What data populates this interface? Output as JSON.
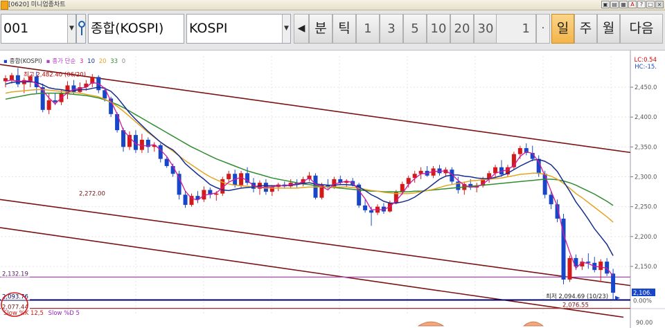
{
  "window": {
    "title": "[0620] 미니업종차트",
    "buttons": [
      "▣",
      "▤",
      "▦",
      "A",
      "?",
      "□",
      "×"
    ]
  },
  "toolbar": {
    "code": "001",
    "name": "종합(KOSPI)",
    "index_select": "KOSPI",
    "back_arrow": "◀",
    "buttons": [
      {
        "label": "분",
        "active": false,
        "num": false
      },
      {
        "label": "틱",
        "active": false,
        "num": false
      },
      {
        "label": "1",
        "active": false,
        "num": true
      },
      {
        "label": "3",
        "active": false,
        "num": true
      },
      {
        "label": "5",
        "active": false,
        "num": true
      },
      {
        "label": "10",
        "active": false,
        "num": true
      },
      {
        "label": "20",
        "active": false,
        "num": true
      },
      {
        "label": "30",
        "active": false,
        "num": true
      }
    ],
    "qty": "1",
    "stepper": "·",
    "period_buttons": [
      {
        "label": "일",
        "active": true
      },
      {
        "label": "주",
        "active": false
      },
      {
        "label": "월",
        "active": false
      },
      {
        "label": "다음",
        "active": false
      }
    ]
  },
  "chart": {
    "legend": {
      "series_name": "종합(KOSPI)",
      "price_type": "종가 단순",
      "ma_labels": [
        "3",
        "10",
        "20",
        "33",
        "0"
      ],
      "ma_colors": [
        "#d0189c",
        "#162d8f",
        "#e3a521",
        "#2f8d2f",
        "#888888"
      ]
    },
    "high_label": "최고 2,482.40 (06/20)",
    "low_label": "최저 2,094.69 (10/23)",
    "lc_label": "LC:0.54",
    "hc_label": "HC:-15.",
    "line_2272": "2,272.00",
    "line_2132": "2,132.19",
    "line_2093": "2,093.76",
    "line_2077": "2,077.44",
    "line_2076": "2,076.55",
    "current_price": "2,106.",
    "pct_label": "0.00%",
    "slow_k": "Slow %K 12,5",
    "slow_d": "Slow %D 5",
    "axis_bottom": "90.00",
    "y_ticks": [
      "2,450.0",
      "2,400.0",
      "2,350.0",
      "2,300.0",
      "2,250.0",
      "2,200.0",
      "2,150.0"
    ],
    "colors": {
      "up": "#d11a1a",
      "down": "#1846c9",
      "trend": "#7a1313",
      "hline": "#b040c0",
      "navy": "#00006a"
    }
  },
  "chart_data": {
    "type": "candlestick",
    "ylim": [
      2060,
      2500
    ],
    "y_ticks": [
      2450,
      2400,
      2350,
      2300,
      2250,
      2200,
      2150
    ],
    "candles": [
      {
        "o": 2460,
        "h": 2470,
        "l": 2450,
        "c": 2465
      },
      {
        "o": 2462,
        "h": 2474,
        "l": 2456,
        "c": 2470
      },
      {
        "o": 2470,
        "h": 2482,
        "l": 2450,
        "c": 2455
      },
      {
        "o": 2455,
        "h": 2466,
        "l": 2440,
        "c": 2462
      },
      {
        "o": 2460,
        "h": 2470,
        "l": 2450,
        "c": 2468
      },
      {
        "o": 2468,
        "h": 2476,
        "l": 2440,
        "c": 2450
      },
      {
        "o": 2450,
        "h": 2456,
        "l": 2408,
        "c": 2412
      },
      {
        "o": 2412,
        "h": 2440,
        "l": 2405,
        "c": 2428
      },
      {
        "o": 2428,
        "h": 2440,
        "l": 2420,
        "c": 2425
      },
      {
        "o": 2425,
        "h": 2446,
        "l": 2420,
        "c": 2440
      },
      {
        "o": 2440,
        "h": 2460,
        "l": 2430,
        "c": 2453
      },
      {
        "o": 2453,
        "h": 2462,
        "l": 2438,
        "c": 2442
      },
      {
        "o": 2442,
        "h": 2458,
        "l": 2440,
        "c": 2450
      },
      {
        "o": 2450,
        "h": 2462,
        "l": 2444,
        "c": 2456
      },
      {
        "o": 2456,
        "h": 2472,
        "l": 2450,
        "c": 2467
      },
      {
        "o": 2467,
        "h": 2470,
        "l": 2440,
        "c": 2445
      },
      {
        "o": 2445,
        "h": 2450,
        "l": 2426,
        "c": 2431
      },
      {
        "o": 2431,
        "h": 2434,
        "l": 2400,
        "c": 2405
      },
      {
        "o": 2405,
        "h": 2408,
        "l": 2374,
        "c": 2378
      },
      {
        "o": 2378,
        "h": 2382,
        "l": 2342,
        "c": 2350
      },
      {
        "o": 2350,
        "h": 2376,
        "l": 2345,
        "c": 2370
      },
      {
        "o": 2370,
        "h": 2378,
        "l": 2340,
        "c": 2345
      },
      {
        "o": 2345,
        "h": 2372,
        "l": 2340,
        "c": 2362
      },
      {
        "o": 2362,
        "h": 2366,
        "l": 2340,
        "c": 2350
      },
      {
        "o": 2350,
        "h": 2358,
        "l": 2342,
        "c": 2353
      },
      {
        "o": 2353,
        "h": 2356,
        "l": 2324,
        "c": 2330
      },
      {
        "o": 2330,
        "h": 2334,
        "l": 2315,
        "c": 2318
      },
      {
        "o": 2318,
        "h": 2322,
        "l": 2300,
        "c": 2305
      },
      {
        "o": 2305,
        "h": 2310,
        "l": 2262,
        "c": 2270
      },
      {
        "o": 2270,
        "h": 2276,
        "l": 2248,
        "c": 2253
      },
      {
        "o": 2253,
        "h": 2272,
        "l": 2250,
        "c": 2268
      },
      {
        "o": 2268,
        "h": 2276,
        "l": 2256,
        "c": 2262
      },
      {
        "o": 2262,
        "h": 2284,
        "l": 2258,
        "c": 2278
      },
      {
        "o": 2278,
        "h": 2282,
        "l": 2264,
        "c": 2270
      },
      {
        "o": 2270,
        "h": 2276,
        "l": 2260,
        "c": 2272
      },
      {
        "o": 2272,
        "h": 2300,
        "l": 2268,
        "c": 2296
      },
      {
        "o": 2296,
        "h": 2310,
        "l": 2290,
        "c": 2305
      },
      {
        "o": 2305,
        "h": 2312,
        "l": 2282,
        "c": 2286
      },
      {
        "o": 2286,
        "h": 2310,
        "l": 2282,
        "c": 2306
      },
      {
        "o": 2306,
        "h": 2316,
        "l": 2286,
        "c": 2290
      },
      {
        "o": 2290,
        "h": 2298,
        "l": 2274,
        "c": 2280
      },
      {
        "o": 2280,
        "h": 2294,
        "l": 2270,
        "c": 2290
      },
      {
        "o": 2290,
        "h": 2296,
        "l": 2270,
        "c": 2275
      },
      {
        "o": 2275,
        "h": 2286,
        "l": 2268,
        "c": 2283
      },
      {
        "o": 2283,
        "h": 2290,
        "l": 2276,
        "c": 2287
      },
      {
        "o": 2287,
        "h": 2292,
        "l": 2280,
        "c": 2284
      },
      {
        "o": 2284,
        "h": 2296,
        "l": 2280,
        "c": 2290
      },
      {
        "o": 2290,
        "h": 2296,
        "l": 2282,
        "c": 2288
      },
      {
        "o": 2288,
        "h": 2300,
        "l": 2284,
        "c": 2296
      },
      {
        "o": 2296,
        "h": 2308,
        "l": 2292,
        "c": 2302
      },
      {
        "o": 2302,
        "h": 2306,
        "l": 2262,
        "c": 2265
      },
      {
        "o": 2265,
        "h": 2290,
        "l": 2262,
        "c": 2286
      },
      {
        "o": 2286,
        "h": 2296,
        "l": 2280,
        "c": 2283
      },
      {
        "o": 2283,
        "h": 2300,
        "l": 2280,
        "c": 2296
      },
      {
        "o": 2296,
        "h": 2302,
        "l": 2286,
        "c": 2290
      },
      {
        "o": 2290,
        "h": 2296,
        "l": 2282,
        "c": 2293
      },
      {
        "o": 2293,
        "h": 2298,
        "l": 2284,
        "c": 2287
      },
      {
        "o": 2287,
        "h": 2290,
        "l": 2248,
        "c": 2252
      },
      {
        "o": 2252,
        "h": 2262,
        "l": 2240,
        "c": 2244
      },
      {
        "o": 2244,
        "h": 2250,
        "l": 2218,
        "c": 2240
      },
      {
        "o": 2240,
        "h": 2254,
        "l": 2236,
        "c": 2250
      },
      {
        "o": 2250,
        "h": 2256,
        "l": 2238,
        "c": 2242
      },
      {
        "o": 2242,
        "h": 2260,
        "l": 2240,
        "c": 2256
      },
      {
        "o": 2256,
        "h": 2278,
        "l": 2254,
        "c": 2274
      },
      {
        "o": 2274,
        "h": 2292,
        "l": 2270,
        "c": 2288
      },
      {
        "o": 2288,
        "h": 2302,
        "l": 2282,
        "c": 2298
      },
      {
        "o": 2298,
        "h": 2310,
        "l": 2290,
        "c": 2305
      },
      {
        "o": 2305,
        "h": 2316,
        "l": 2296,
        "c": 2310
      },
      {
        "o": 2310,
        "h": 2318,
        "l": 2300,
        "c": 2302
      },
      {
        "o": 2302,
        "h": 2318,
        "l": 2298,
        "c": 2314
      },
      {
        "o": 2314,
        "h": 2320,
        "l": 2302,
        "c": 2306
      },
      {
        "o": 2306,
        "h": 2316,
        "l": 2300,
        "c": 2312
      },
      {
        "o": 2312,
        "h": 2316,
        "l": 2288,
        "c": 2292
      },
      {
        "o": 2292,
        "h": 2300,
        "l": 2272,
        "c": 2278
      },
      {
        "o": 2278,
        "h": 2292,
        "l": 2270,
        "c": 2288
      },
      {
        "o": 2288,
        "h": 2296,
        "l": 2278,
        "c": 2282
      },
      {
        "o": 2282,
        "h": 2290,
        "l": 2274,
        "c": 2285
      },
      {
        "o": 2285,
        "h": 2300,
        "l": 2282,
        "c": 2296
      },
      {
        "o": 2296,
        "h": 2310,
        "l": 2290,
        "c": 2306
      },
      {
        "o": 2306,
        "h": 2320,
        "l": 2300,
        "c": 2316
      },
      {
        "o": 2316,
        "h": 2328,
        "l": 2300,
        "c": 2304
      },
      {
        "o": 2304,
        "h": 2320,
        "l": 2300,
        "c": 2316
      },
      {
        "o": 2316,
        "h": 2342,
        "l": 2312,
        "c": 2338
      },
      {
        "o": 2338,
        "h": 2352,
        "l": 2330,
        "c": 2348
      },
      {
        "o": 2348,
        "h": 2356,
        "l": 2336,
        "c": 2340
      },
      {
        "o": 2340,
        "h": 2352,
        "l": 2326,
        "c": 2330
      },
      {
        "o": 2330,
        "h": 2336,
        "l": 2300,
        "c": 2305
      },
      {
        "o": 2305,
        "h": 2310,
        "l": 2264,
        "c": 2270
      },
      {
        "o": 2270,
        "h": 2276,
        "l": 2246,
        "c": 2254
      },
      {
        "o": 2254,
        "h": 2262,
        "l": 2224,
        "c": 2230
      },
      {
        "o": 2230,
        "h": 2238,
        "l": 2120,
        "c": 2128
      },
      {
        "o": 2128,
        "h": 2168,
        "l": 2124,
        "c": 2164
      },
      {
        "o": 2164,
        "h": 2170,
        "l": 2144,
        "c": 2150
      },
      {
        "o": 2150,
        "h": 2164,
        "l": 2144,
        "c": 2158
      },
      {
        "o": 2158,
        "h": 2172,
        "l": 2146,
        "c": 2156
      },
      {
        "o": 2156,
        "h": 2166,
        "l": 2140,
        "c": 2144
      },
      {
        "o": 2144,
        "h": 2162,
        "l": 2124,
        "c": 2158
      },
      {
        "o": 2158,
        "h": 2164,
        "l": 2134,
        "c": 2138
      },
      {
        "o": 2138,
        "h": 2146,
        "l": 2094,
        "c": 2106
      }
    ],
    "ma3": [
      2460,
      2462,
      2460,
      2460,
      2461,
      2456,
      2445,
      2432,
      2422,
      2432,
      2441,
      2446,
      2448,
      2450,
      2458,
      2456,
      2448,
      2427,
      2405,
      2378,
      2366,
      2355,
      2352,
      2352,
      2354,
      2345,
      2334,
      2318,
      2298,
      2276,
      2264,
      2261,
      2269,
      2271,
      2273,
      2282,
      2291,
      2296,
      2299,
      2294,
      2285,
      2282,
      2283,
      2283,
      2285,
      2285,
      2287,
      2288,
      2292,
      2298,
      2288,
      2284,
      2278,
      2288,
      2290,
      2293,
      2290,
      2277,
      2263,
      2245,
      2245,
      2245,
      2250,
      2260,
      2272,
      2287,
      2297,
      2305,
      2306,
      2309,
      2309,
      2310,
      2304,
      2294,
      2286,
      2283,
      2283,
      2288,
      2296,
      2306,
      2309,
      2312,
      2319,
      2334,
      2342,
      2339,
      2325,
      2302,
      2276,
      2251,
      2204,
      2174,
      2147,
      2157,
      2155,
      2150,
      2149,
      2147,
      2134
    ],
    "ma10": [
      2455,
      2458,
      2459,
      2459,
      2459,
      2458,
      2454,
      2449,
      2447,
      2446,
      2444,
      2444,
      2446,
      2446,
      2448,
      2450,
      2448,
      2443,
      2433,
      2420,
      2407,
      2396,
      2386,
      2376,
      2367,
      2358,
      2351,
      2345,
      2335,
      2322,
      2313,
      2304,
      2296,
      2287,
      2282,
      2278,
      2277,
      2279,
      2281,
      2282,
      2283,
      2285,
      2285,
      2285,
      2285,
      2285,
      2286,
      2287,
      2289,
      2290,
      2288,
      2287,
      2286,
      2286,
      2287,
      2287,
      2286,
      2283,
      2277,
      2270,
      2265,
      2259,
      2256,
      2256,
      2258,
      2261,
      2266,
      2273,
      2280,
      2288,
      2296,
      2301,
      2303,
      2303,
      2301,
      2300,
      2298,
      2297,
      2297,
      2299,
      2302,
      2306,
      2312,
      2318,
      2323,
      2328,
      2329,
      2326,
      2320,
      2309,
      2292,
      2276,
      2258,
      2244,
      2229,
      2213,
      2200,
      2187,
      2168
    ],
    "ma20": [
      2440,
      2442,
      2443,
      2444,
      2445,
      2446,
      2446,
      2445,
      2444,
      2443,
      2442,
      2441,
      2440,
      2438,
      2436,
      2434,
      2430,
      2425,
      2418,
      2410,
      2401,
      2392,
      2383,
      2374,
      2366,
      2358,
      2350,
      2343,
      2335,
      2327,
      2320,
      2313,
      2306,
      2300,
      2295,
      2291,
      2288,
      2286,
      2285,
      2284,
      2283,
      2282,
      2281,
      2281,
      2281,
      2281,
      2281,
      2281,
      2282,
      2283,
      2283,
      2283,
      2283,
      2283,
      2283,
      2283,
      2282,
      2281,
      2279,
      2277,
      2276,
      2274,
      2273,
      2272,
      2272,
      2272,
      2273,
      2275,
      2277,
      2279,
      2282,
      2285,
      2287,
      2289,
      2291,
      2293,
      2294,
      2295,
      2296,
      2297,
      2298,
      2300,
      2302,
      2304,
      2305,
      2306,
      2306,
      2304,
      2301,
      2296,
      2289,
      2281,
      2272,
      2265,
      2257,
      2249,
      2241,
      2233,
      2224
    ],
    "ma33": [
      2430,
      2432,
      2434,
      2436,
      2438,
      2439,
      2440,
      2440,
      2440,
      2440,
      2439,
      2438,
      2437,
      2436,
      2434,
      2432,
      2429,
      2425,
      2421,
      2416,
      2410,
      2404,
      2398,
      2392,
      2386,
      2380,
      2374,
      2368,
      2362,
      2356,
      2350,
      2345,
      2340,
      2335,
      2330,
      2326,
      2322,
      2318,
      2314,
      2310,
      2307,
      2304,
      2301,
      2298,
      2296,
      2294,
      2292,
      2290,
      2288,
      2287,
      2285,
      2284,
      2283,
      2282,
      2281,
      2280,
      2279,
      2278,
      2277,
      2276,
      2276,
      2275,
      2275,
      2275,
      2275,
      2275,
      2276,
      2276,
      2277,
      2278,
      2279,
      2280,
      2281,
      2282,
      2283,
      2284,
      2285,
      2286,
      2287,
      2288,
      2289,
      2290,
      2291,
      2292,
      2293,
      2294,
      2295,
      2296,
      2296,
      2295,
      2293,
      2290,
      2286,
      2281,
      2276,
      2271,
      2265,
      2259,
      2252
    ]
  }
}
